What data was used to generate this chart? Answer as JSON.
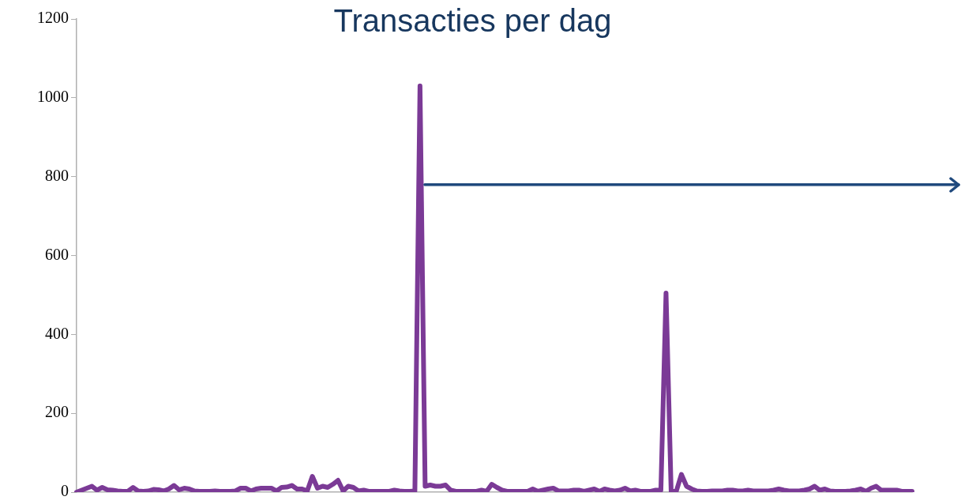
{
  "chart_data": {
    "type": "line",
    "title": "Transacties per dag",
    "categories": [
      null,
      null,
      null,
      null,
      null,
      null,
      null,
      null,
      null,
      null,
      null,
      null,
      null,
      null,
      null,
      null,
      null,
      null,
      null,
      null,
      null,
      null,
      null,
      null,
      null,
      null,
      null,
      null,
      null,
      null,
      null,
      null,
      null,
      null,
      null,
      null,
      null,
      null,
      null,
      null,
      null,
      null,
      null,
      null,
      null,
      null,
      null,
      null,
      null,
      null,
      null,
      null,
      null,
      null,
      null,
      null,
      null,
      null,
      null,
      null,
      null,
      null,
      null,
      null,
      null,
      null,
      null,
      null,
      null,
      null,
      null,
      null,
      null,
      null,
      null,
      null,
      null,
      null,
      null,
      null,
      null,
      null,
      null,
      null,
      null,
      null,
      null,
      null,
      null,
      null,
      null,
      null,
      null,
      null,
      null,
      null,
      null,
      null,
      null,
      null,
      null,
      null,
      null,
      null,
      null,
      null,
      null,
      null,
      null,
      null,
      null,
      null,
      null,
      null,
      null,
      null,
      null,
      null,
      null,
      null,
      null,
      null,
      null,
      null,
      null,
      null,
      null,
      null,
      null,
      null,
      null,
      null,
      null,
      null,
      null,
      null,
      null,
      null,
      null,
      null,
      null,
      null,
      null,
      null,
      null,
      null,
      null,
      null,
      null,
      null,
      null,
      null,
      null,
      null,
      null,
      null,
      null,
      null,
      null,
      null,
      null,
      null,
      null,
      null
    ],
    "values": [
      0,
      5,
      10,
      15,
      5,
      12,
      6,
      5,
      3,
      2,
      2,
      12,
      3,
      2,
      3,
      7,
      6,
      3,
      8,
      17,
      6,
      10,
      8,
      3,
      2,
      2,
      2,
      3,
      2,
      2,
      2,
      3,
      10,
      10,
      3,
      8,
      10,
      10,
      10,
      3,
      12,
      13,
      17,
      8,
      8,
      3,
      40,
      10,
      15,
      12,
      20,
      30,
      3,
      15,
      12,
      3,
      5,
      2,
      2,
      2,
      2,
      2,
      5,
      3,
      2,
      2,
      3,
      1030,
      15,
      18,
      15,
      15,
      18,
      5,
      2,
      2,
      2,
      2,
      2,
      5,
      2,
      20,
      12,
      5,
      2,
      2,
      2,
      2,
      2,
      8,
      2,
      5,
      8,
      10,
      3,
      3,
      3,
      5,
      5,
      2,
      5,
      8,
      2,
      8,
      5,
      3,
      5,
      10,
      3,
      5,
      2,
      2,
      2,
      5,
      5,
      505,
      2,
      2,
      45,
      15,
      8,
      3,
      2,
      2,
      3,
      3,
      3,
      5,
      5,
      3,
      3,
      5,
      3,
      3,
      3,
      3,
      5,
      8,
      5,
      3,
      3,
      3,
      5,
      8,
      15,
      5,
      8,
      3,
      2,
      2,
      2,
      3,
      5,
      8,
      2,
      10,
      15,
      5,
      5,
      5,
      5,
      2,
      2,
      2
    ],
    "color": "#7b3a96",
    "ref_lines": [
      {
        "axis": "y",
        "value": 780,
        "color": "#1f497d"
      }
    ],
    "ylim": [
      0,
      1200
    ],
    "yticks": [
      0,
      200,
      400,
      600,
      800,
      1000,
      1200
    ],
    "grid": false,
    "legend": false,
    "marker": "none",
    "line_style": "solid",
    "tick_labels": "y"
  }
}
